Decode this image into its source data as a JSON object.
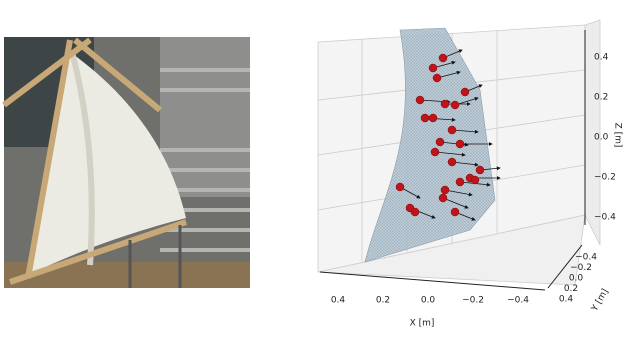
{
  "plot": {
    "x_axis": {
      "label": "X [m]",
      "ticks": [
        "0.4",
        "0.2",
        "0.0",
        "−0.2",
        "−0.4"
      ]
    },
    "y_axis": {
      "label": "Y [m]",
      "ticks": [
        "−0.4",
        "−0.2",
        "0.0",
        "0.2",
        "0.4"
      ]
    },
    "z_axis": {
      "label": "Z [m]",
      "ticks": [
        "0.4",
        "0.2",
        "0.0",
        "−0.2",
        "−0.4"
      ]
    }
  }
}
